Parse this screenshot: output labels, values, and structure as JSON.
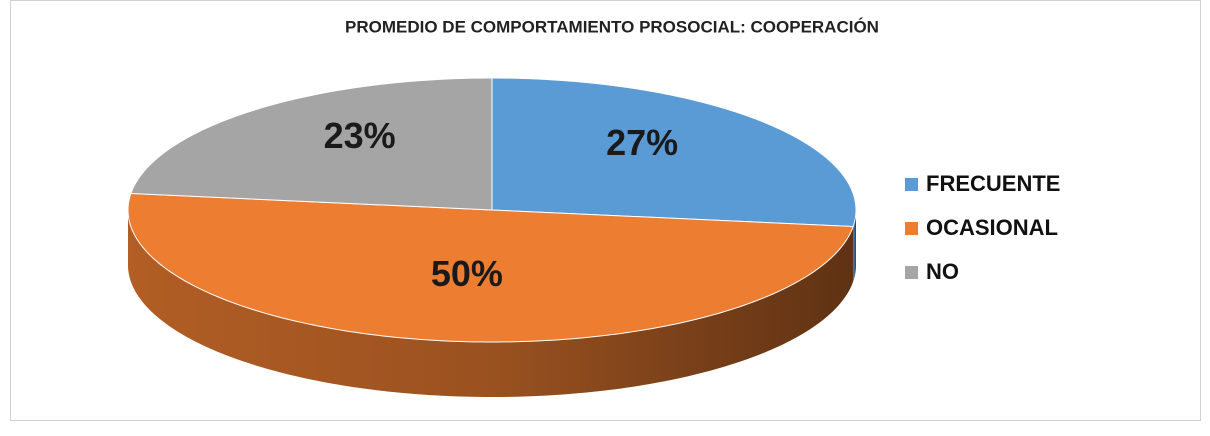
{
  "chart_data": {
    "type": "pie",
    "title": "PROMEDIO DE COMPORTAMIENTO PROSOCIAL: COOPERACIÓN",
    "categories": [
      "FRECUENTE",
      "OCASIONAL",
      "NO"
    ],
    "values": [
      27,
      50,
      23
    ],
    "value_labels": [
      "27%",
      "50%",
      "23%"
    ],
    "colors": [
      "#5b9bd5",
      "#ed7d31",
      "#a5a5a5"
    ],
    "legend": "right"
  }
}
